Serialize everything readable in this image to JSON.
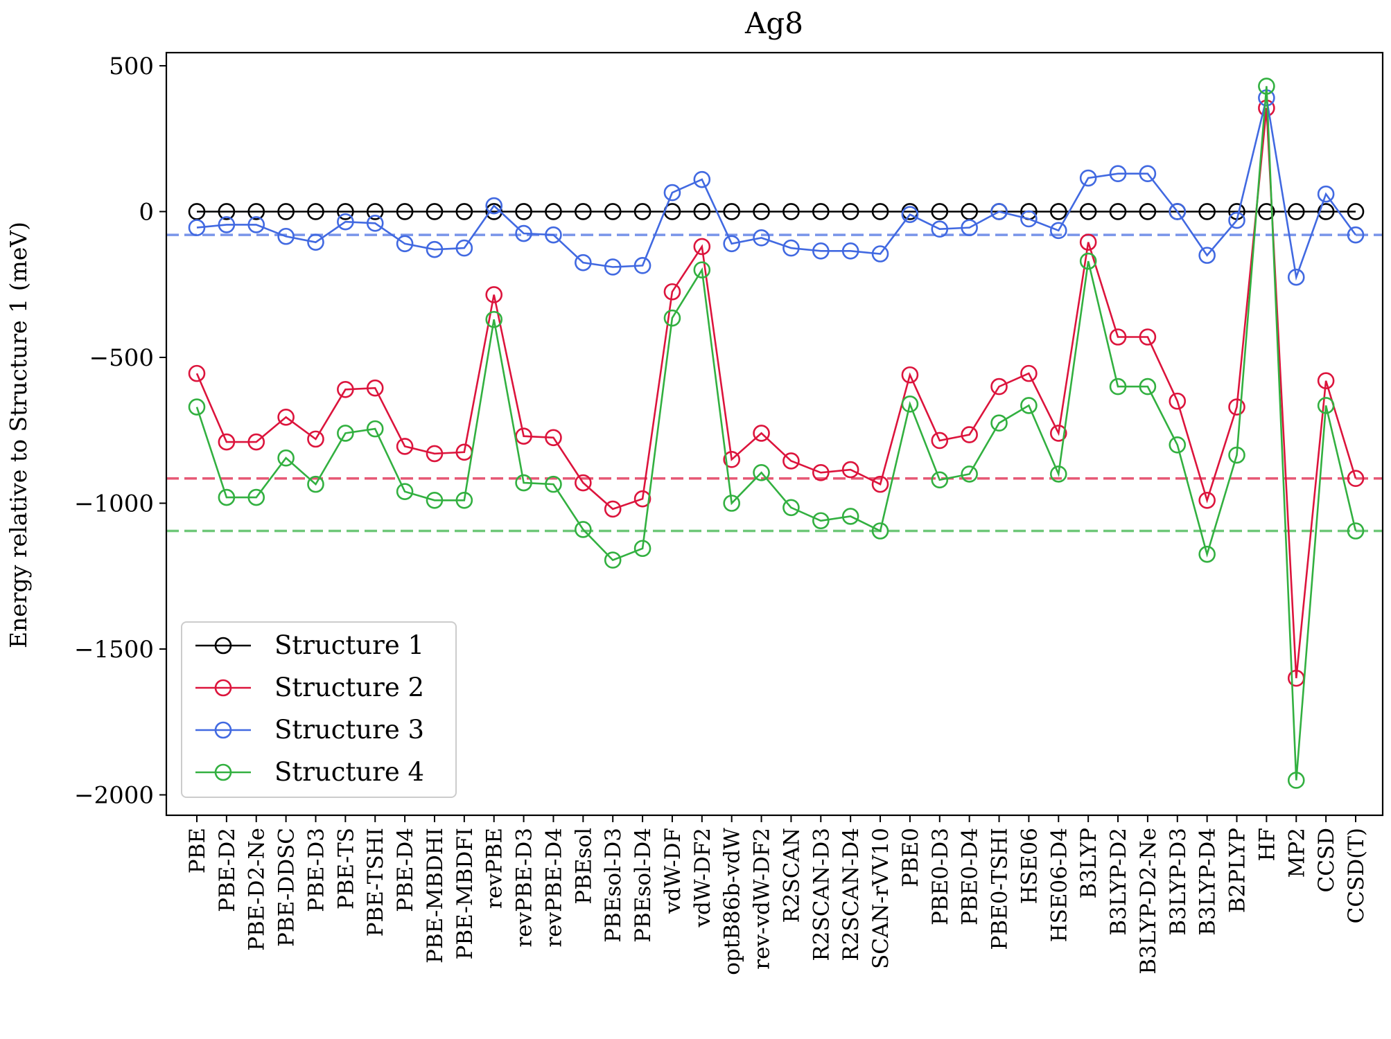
{
  "chart_data": {
    "type": "line",
    "title": "Ag8",
    "xlabel": "",
    "ylabel": "Energy relative to Structure 1 (meV)",
    "ylim": [
      -2070,
      545
    ],
    "yticks": [
      500,
      0,
      -500,
      -1000,
      -1500,
      -2000
    ],
    "ytick_labels": [
      "500",
      "0",
      "−500",
      "−1000",
      "−1500",
      "−2000"
    ],
    "grid": false,
    "legend_position": "lower-left",
    "categories": [
      "PBE",
      "PBE-D2",
      "PBE-D2-Ne",
      "PBE-DDSC",
      "PBE-D3",
      "PBE-TS",
      "PBE-TSHI",
      "PBE-D4",
      "PBE-MBDHI",
      "PBE-MBDFI",
      "revPBE",
      "revPBE-D3",
      "revPBE-D4",
      "PBEsol",
      "PBEsol-D3",
      "PBEsol-D4",
      "vdW-DF",
      "vdW-DF2",
      "optB86b-vdW",
      "rev-vdW-DF2",
      "R2SCAN",
      "R2SCAN-D3",
      "R2SCAN-D4",
      "SCAN-rVV10",
      "PBE0",
      "PBE0-D3",
      "PBE0-D4",
      "PBE0-TSHI",
      "HSE06",
      "HSE06-D4",
      "B3LYP",
      "B3LYP-D2",
      "B3LYP-D2-Ne",
      "B3LYP-D3",
      "B3LYP-D4",
      "B2PLYP",
      "HF",
      "MP2",
      "CCSD",
      "CCSD(T)"
    ],
    "series": [
      {
        "name": "Structure 1",
        "color": "#000000",
        "values": [
          0,
          0,
          0,
          0,
          0,
          0,
          0,
          0,
          0,
          0,
          0,
          0,
          0,
          0,
          0,
          0,
          0,
          0,
          0,
          0,
          0,
          0,
          0,
          0,
          0,
          0,
          0,
          0,
          0,
          0,
          0,
          0,
          0,
          0,
          0,
          0,
          0,
          0,
          0,
          0
        ],
        "reference": null
      },
      {
        "name": "Structure 2",
        "color": "#dc143c",
        "values": [
          -555,
          -790,
          -790,
          -705,
          -780,
          -610,
          -605,
          -805,
          -830,
          -825,
          -285,
          -770,
          -775,
          -930,
          -1020,
          -985,
          -275,
          -120,
          -850,
          -760,
          -855,
          -895,
          -885,
          -935,
          -560,
          -785,
          -765,
          -600,
          -555,
          -760,
          -105,
          -430,
          -430,
          -650,
          -990,
          -670,
          355,
          -1600,
          -580,
          -915
        ],
        "reference": -915
      },
      {
        "name": "Structure 3",
        "color": "#4169e1",
        "values": [
          -55,
          -45,
          -45,
          -85,
          -105,
          -35,
          -40,
          -110,
          -130,
          -125,
          20,
          -75,
          -80,
          -175,
          -190,
          -185,
          65,
          110,
          -110,
          -90,
          -125,
          -135,
          -135,
          -145,
          -10,
          -60,
          -55,
          0,
          -25,
          -65,
          115,
          130,
          130,
          0,
          -150,
          -30,
          390,
          -225,
          60,
          -80
        ],
        "reference": -80
      },
      {
        "name": "Structure 4",
        "color": "#32b040",
        "values": [
          -670,
          -980,
          -980,
          -845,
          -935,
          -760,
          -745,
          -960,
          -990,
          -990,
          -370,
          -930,
          -935,
          -1090,
          -1195,
          -1155,
          -365,
          -200,
          -1000,
          -895,
          -1015,
          -1060,
          -1045,
          -1095,
          -660,
          -920,
          -900,
          -725,
          -665,
          -900,
          -170,
          -600,
          -600,
          -800,
          -1175,
          -835,
          430,
          -1950,
          -665,
          -1095
        ],
        "reference": -1095
      }
    ]
  }
}
